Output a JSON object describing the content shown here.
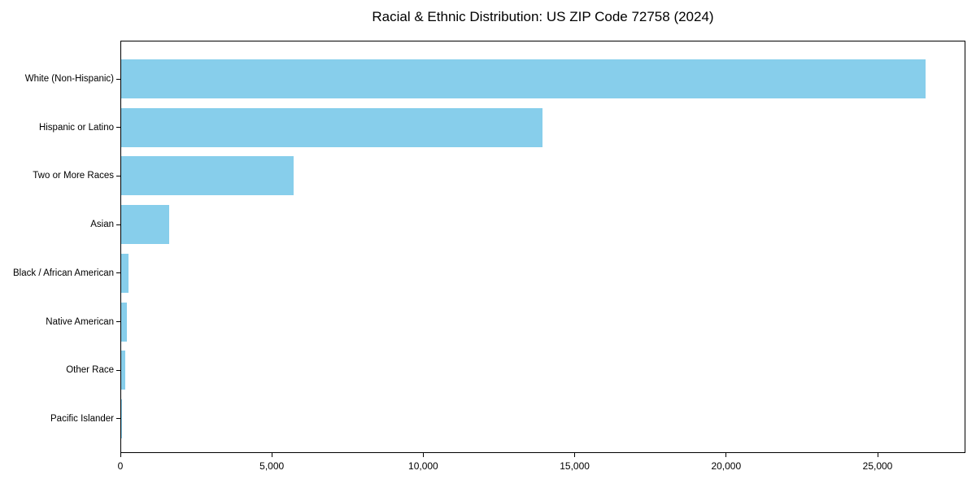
{
  "chart_data": {
    "type": "bar",
    "orientation": "horizontal",
    "title": "Racial & Ethnic Distribution: US ZIP Code 72758 (2024)",
    "categories": [
      "White (Non-Hispanic)",
      "Hispanic or Latino",
      "Two or More Races",
      "Asian",
      "Black / African American",
      "Native American",
      "Other Race",
      "Pacific Islander"
    ],
    "values": [
      26550,
      13900,
      5700,
      1580,
      250,
      190,
      140,
      15
    ],
    "xlabel": "",
    "ylabel": "",
    "xlim": [
      0,
      27900
    ],
    "x_ticks": [
      0,
      5000,
      10000,
      15000,
      20000,
      25000
    ],
    "x_tick_labels": [
      "0",
      "5,000",
      "10,000",
      "15,000",
      "20,000",
      "25,000"
    ],
    "bar_color": "#87ceeb",
    "axis_color": "#000000",
    "grid": false,
    "legend": null
  }
}
